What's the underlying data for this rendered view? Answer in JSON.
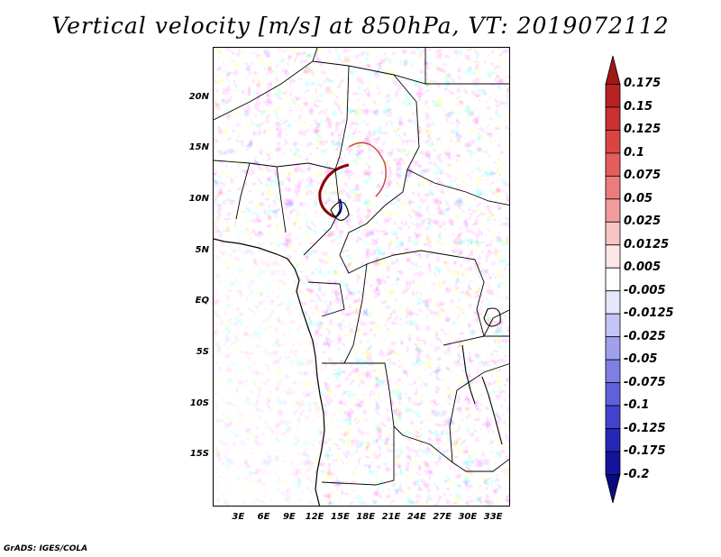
{
  "title": "Vertical velocity [m/s] at 850hPa, VT: 2019072112",
  "credit": "GrADS: IGES/COLA",
  "map": {
    "lon_range": [
      0,
      35
    ],
    "lat_range": [
      -20,
      25
    ],
    "lat_ticks": [
      {
        "value": 20,
        "label": "20N"
      },
      {
        "value": 15,
        "label": "15N"
      },
      {
        "value": 10,
        "label": "10N"
      },
      {
        "value": 5,
        "label": "5N"
      },
      {
        "value": 0,
        "label": "EQ"
      },
      {
        "value": -5,
        "label": "5S"
      },
      {
        "value": -10,
        "label": "10S"
      },
      {
        "value": -15,
        "label": "15S"
      }
    ],
    "lon_ticks": [
      {
        "value": 3,
        "label": "3E"
      },
      {
        "value": 6,
        "label": "6E"
      },
      {
        "value": 9,
        "label": "9E"
      },
      {
        "value": 12,
        "label": "12E"
      },
      {
        "value": 15,
        "label": "15E"
      },
      {
        "value": 18,
        "label": "18E"
      },
      {
        "value": 21,
        "label": "21E"
      },
      {
        "value": 24,
        "label": "24E"
      },
      {
        "value": 27,
        "label": "27E"
      },
      {
        "value": 30,
        "label": "30E"
      },
      {
        "value": 33,
        "label": "33E"
      }
    ]
  },
  "colorbar": {
    "labels": [
      "0.175",
      "0.15",
      "0.125",
      "0.1",
      "0.075",
      "0.05",
      "0.025",
      "0.0125",
      "0.005",
      "-0.005",
      "-0.0125",
      "-0.025",
      "-0.05",
      "-0.075",
      "-0.1",
      "-0.125",
      "-0.175",
      "-0.2"
    ],
    "colors": [
      "#a01818",
      "#b82222",
      "#cc3030",
      "#dc4444",
      "#e45e5e",
      "#ec7c7c",
      "#f29c9c",
      "#f8c4c4",
      "#fce6e6",
      "#ffffff",
      "#e6e6fc",
      "#c4c4f6",
      "#a0a0ee",
      "#7e7ee6",
      "#6060dc",
      "#4242cc",
      "#2626b4",
      "#14149c",
      "#0a0a80"
    ]
  }
}
